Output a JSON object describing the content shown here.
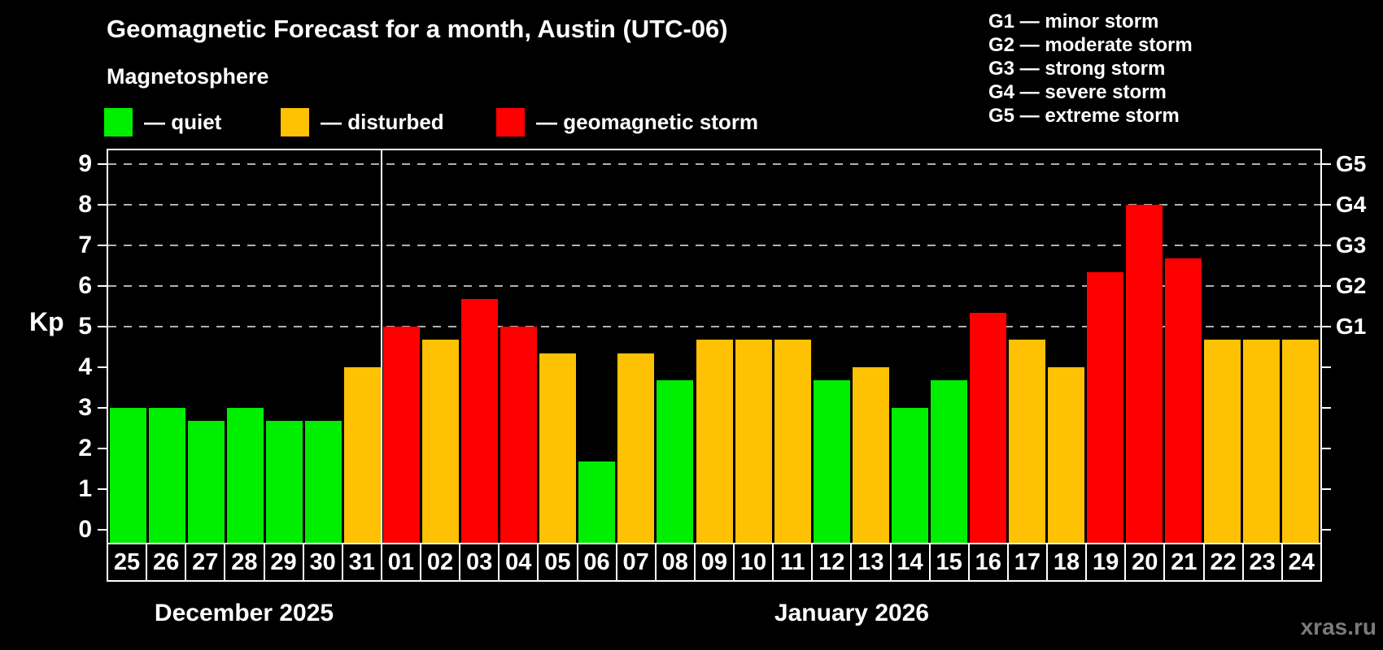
{
  "subtitle": "Magnetosphere",
  "legend": {
    "items": [
      {
        "key": "quiet",
        "label": "— quiet"
      },
      {
        "key": "disturbed",
        "label": "— disturbed"
      },
      {
        "key": "storm",
        "label": "— geomagnetic storm"
      }
    ]
  },
  "g_legend": [
    "G1 — minor storm",
    "G2 — moderate storm",
    "G3 — strong storm",
    "G4 — severe storm",
    "G5 — extreme storm"
  ],
  "watermark": "xras.ru",
  "colors": {
    "quiet": "#00ee00",
    "disturbed": "#ffc103",
    "storm": "#ff0000",
    "grid": "#b0b0b0",
    "axis": "#ffffff",
    "watermark": "#7b7b7b",
    "background": "#000000"
  },
  "chart_data": {
    "type": "bar",
    "title": "Geomagnetic Forecast for a month, Austin (UTC-06)",
    "ylabel": "Kp",
    "xlabel": "",
    "ylim": [
      0,
      9.4
    ],
    "y_ticks": [
      0,
      1,
      2,
      3,
      4,
      5,
      6,
      7,
      8,
      9
    ],
    "gridlines_kp": [
      5,
      6,
      7,
      8,
      9
    ],
    "grid": "dashed horizontal lines at storm levels G1–G5 only",
    "legend_position": "top-left",
    "right_axis": [
      {
        "kp": 5,
        "label": "G1"
      },
      {
        "kp": 6,
        "label": "G2"
      },
      {
        "kp": 7,
        "label": "G3"
      },
      {
        "kp": 8,
        "label": "G4"
      },
      {
        "kp": 9,
        "label": "G5"
      }
    ],
    "months": [
      {
        "label": "December 2025",
        "days": 7
      },
      {
        "label": "January 2026",
        "days": 24
      }
    ],
    "categories": [
      "25",
      "26",
      "27",
      "28",
      "29",
      "30",
      "31",
      "01",
      "02",
      "03",
      "04",
      "05",
      "06",
      "07",
      "08",
      "09",
      "10",
      "11",
      "12",
      "13",
      "14",
      "15",
      "16",
      "17",
      "18",
      "19",
      "20",
      "21",
      "22",
      "23",
      "24"
    ],
    "values": [
      3.0,
      3.0,
      2.67,
      3.0,
      2.67,
      2.67,
      4.0,
      5.0,
      4.67,
      5.67,
      5.0,
      4.33,
      1.67,
      4.33,
      3.67,
      4.67,
      4.67,
      4.67,
      3.67,
      4.0,
      3.0,
      3.67,
      5.33,
      4.67,
      4.0,
      6.33,
      8.0,
      6.67,
      4.67,
      4.67,
      4.67
    ],
    "statuses": [
      "quiet",
      "quiet",
      "quiet",
      "quiet",
      "quiet",
      "quiet",
      "disturbed",
      "storm",
      "disturbed",
      "storm",
      "storm",
      "disturbed",
      "quiet",
      "disturbed",
      "quiet",
      "disturbed",
      "disturbed",
      "disturbed",
      "quiet",
      "disturbed",
      "quiet",
      "quiet",
      "storm",
      "disturbed",
      "disturbed",
      "storm",
      "storm",
      "storm",
      "disturbed",
      "disturbed",
      "disturbed"
    ]
  }
}
